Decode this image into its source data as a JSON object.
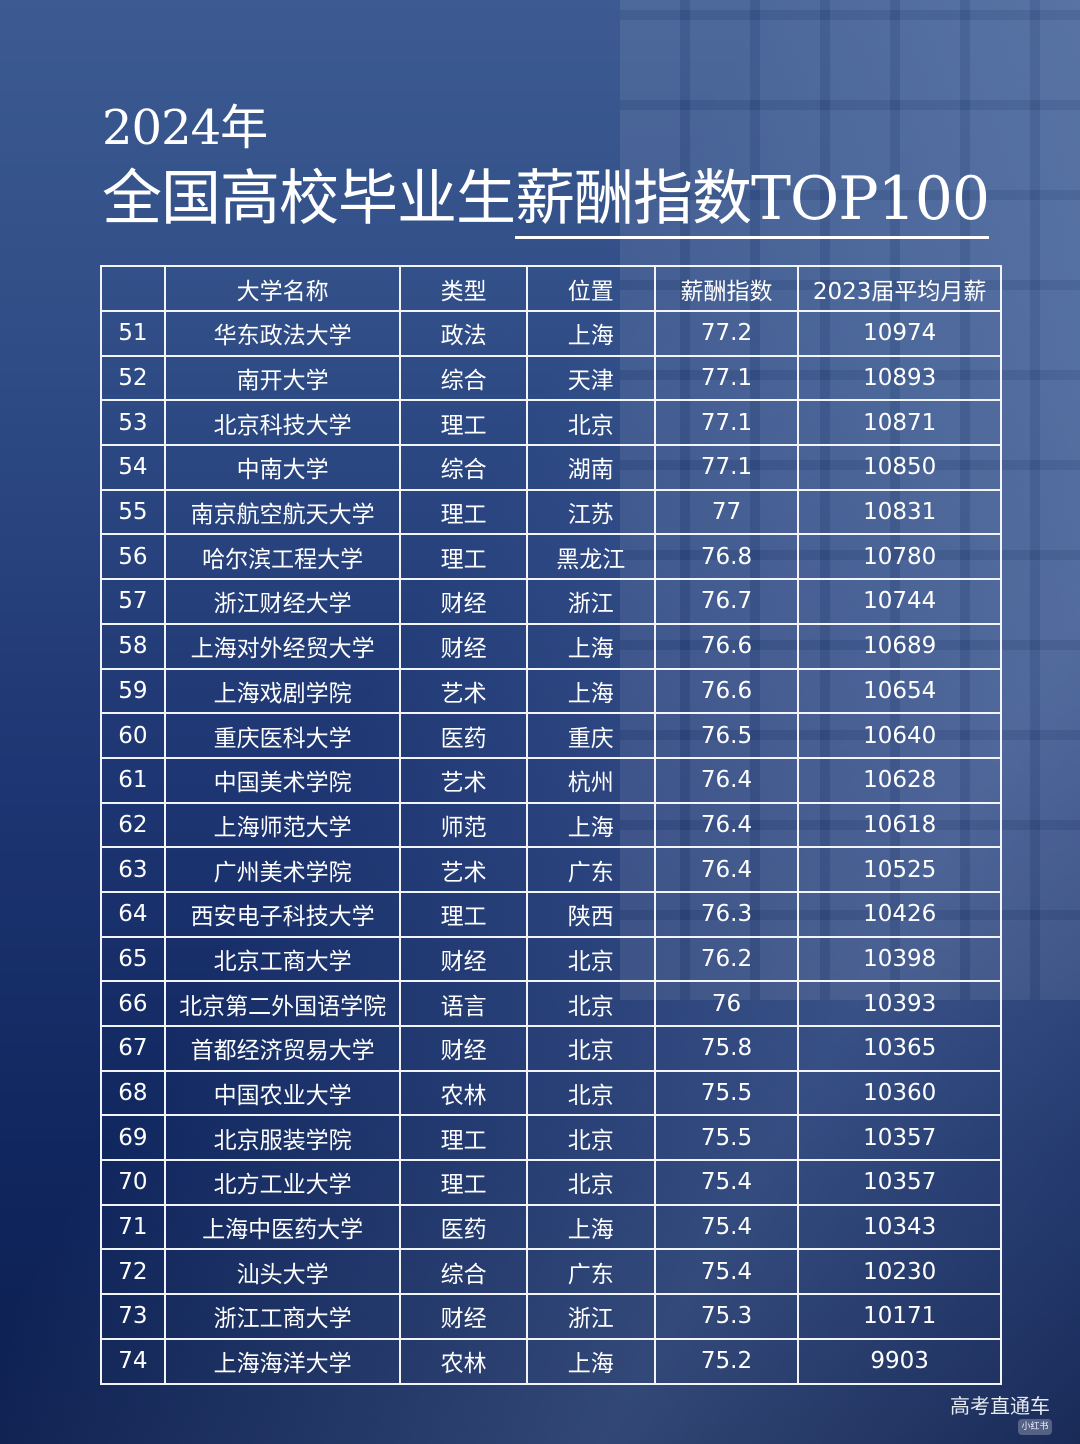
{
  "title": {
    "line1": "2024年",
    "line2_plain": "全国高校毕业生",
    "line2_underlined": "薪酬指数TOP100"
  },
  "table": {
    "headers": [
      "",
      "大学名称",
      "类型",
      "位置",
      "薪酬指数",
      "2023届平均月薪"
    ],
    "rows": [
      [
        "51",
        "华东政法大学",
        "政法",
        "上海",
        "77.2",
        "10974"
      ],
      [
        "52",
        "南开大学",
        "综合",
        "天津",
        "77.1",
        "10893"
      ],
      [
        "53",
        "北京科技大学",
        "理工",
        "北京",
        "77.1",
        "10871"
      ],
      [
        "54",
        "中南大学",
        "综合",
        "湖南",
        "77.1",
        "10850"
      ],
      [
        "55",
        "南京航空航天大学",
        "理工",
        "江苏",
        "77",
        "10831"
      ],
      [
        "56",
        "哈尔滨工程大学",
        "理工",
        "黑龙江",
        "76.8",
        "10780"
      ],
      [
        "57",
        "浙江财经大学",
        "财经",
        "浙江",
        "76.7",
        "10744"
      ],
      [
        "58",
        "上海对外经贸大学",
        "财经",
        "上海",
        "76.6",
        "10689"
      ],
      [
        "59",
        "上海戏剧学院",
        "艺术",
        "上海",
        "76.6",
        "10654"
      ],
      [
        "60",
        "重庆医科大学",
        "医药",
        "重庆",
        "76.5",
        "10640"
      ],
      [
        "61",
        "中国美术学院",
        "艺术",
        "杭州",
        "76.4",
        "10628"
      ],
      [
        "62",
        "上海师范大学",
        "师范",
        "上海",
        "76.4",
        "10618"
      ],
      [
        "63",
        "广州美术学院",
        "艺术",
        "广东",
        "76.4",
        "10525"
      ],
      [
        "64",
        "西安电子科技大学",
        "理工",
        "陕西",
        "76.3",
        "10426"
      ],
      [
        "65",
        "北京工商大学",
        "财经",
        "北京",
        "76.2",
        "10398"
      ],
      [
        "66",
        "北京第二外国语学院",
        "语言",
        "北京",
        "76",
        "10393"
      ],
      [
        "67",
        "首都经济贸易大学",
        "财经",
        "北京",
        "75.8",
        "10365"
      ],
      [
        "68",
        "中国农业大学",
        "农林",
        "北京",
        "75.5",
        "10360"
      ],
      [
        "69",
        "北京服装学院",
        "理工",
        "北京",
        "75.5",
        "10357"
      ],
      [
        "70",
        "北方工业大学",
        "理工",
        "北京",
        "75.4",
        "10357"
      ],
      [
        "71",
        "上海中医药大学",
        "医药",
        "上海",
        "75.4",
        "10343"
      ],
      [
        "72",
        "汕头大学",
        "综合",
        "广东",
        "75.4",
        "10230"
      ],
      [
        "73",
        "浙江工商大学",
        "财经",
        "浙江",
        "75.3",
        "10171"
      ],
      [
        "74",
        "上海海洋大学",
        "农林",
        "上海",
        "75.2",
        "9903"
      ]
    ]
  },
  "watermark": "高考直通车",
  "badge": "小红书"
}
